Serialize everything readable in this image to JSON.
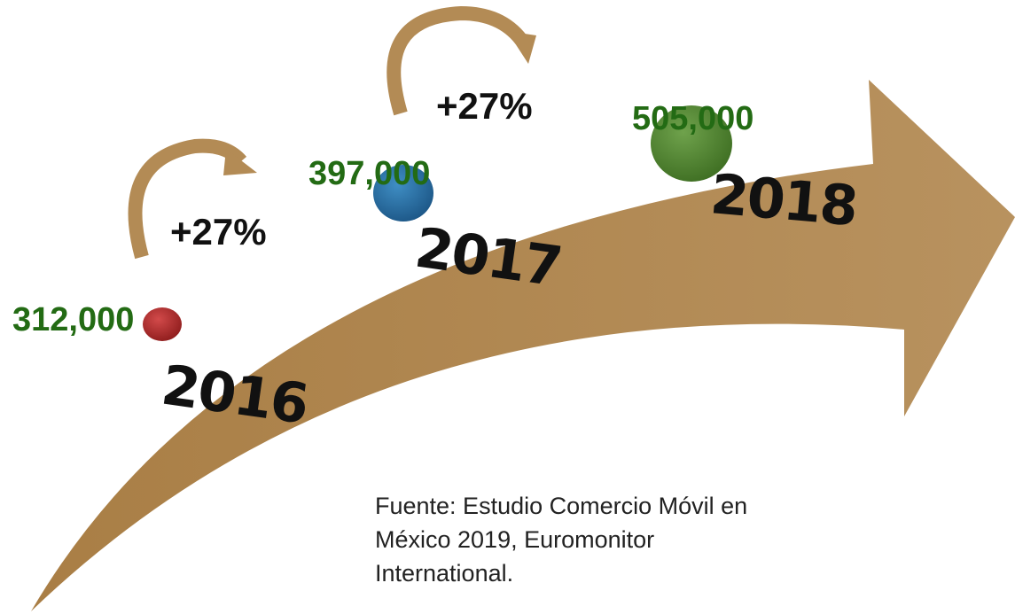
{
  "items": [
    {
      "year": "2016",
      "value": "312,000"
    },
    {
      "year": "2017",
      "value": "397,000"
    },
    {
      "year": "2018",
      "value": "505,000"
    }
  ],
  "growth": [
    "+27%",
    "+27%"
  ],
  "source": [
    "Fuente: Estudio Comercio Móvil en",
    "México 2019, Euromonitor",
    "International."
  ]
}
